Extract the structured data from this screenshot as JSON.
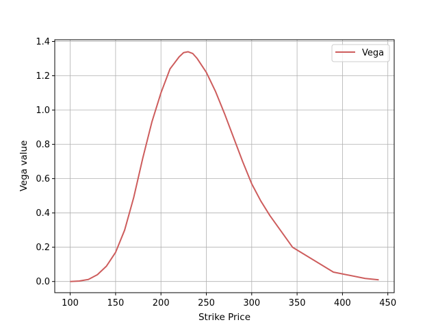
{
  "chart_data": {
    "type": "line",
    "title": "",
    "xlabel": "Strike Price",
    "ylabel": "Vega value",
    "xlim": [
      83,
      457
    ],
    "ylim": [
      -0.065,
      1.41
    ],
    "xticks": [
      100,
      150,
      200,
      250,
      300,
      350,
      400,
      450
    ],
    "yticks": [
      0.0,
      0.2,
      0.4,
      0.6,
      0.8,
      1.0,
      1.2,
      1.4
    ],
    "xtick_labels": [
      "100",
      "150",
      "200",
      "250",
      "300",
      "350",
      "400",
      "450"
    ],
    "ytick_labels": [
      "0.0",
      "0.2",
      "0.4",
      "0.6",
      "0.8",
      "1.0",
      "1.2",
      "1.4"
    ],
    "grid": true,
    "legend_position": "top-right",
    "series": [
      {
        "name": "Vega",
        "color": "#cd5c5c",
        "x": [
          100,
          110,
          120,
          130,
          140,
          150,
          160,
          170,
          180,
          190,
          200,
          210,
          220,
          225,
          230,
          235,
          240,
          250,
          260,
          270,
          280,
          290,
          300,
          310,
          320,
          345,
          390,
          425,
          440
        ],
        "y": [
          0.0,
          0.003,
          0.012,
          0.04,
          0.09,
          0.17,
          0.3,
          0.49,
          0.72,
          0.93,
          1.1,
          1.24,
          1.31,
          1.335,
          1.34,
          1.33,
          1.3,
          1.22,
          1.11,
          0.98,
          0.84,
          0.7,
          0.57,
          0.47,
          0.385,
          0.2,
          0.055,
          0.018,
          0.01
        ]
      }
    ]
  }
}
